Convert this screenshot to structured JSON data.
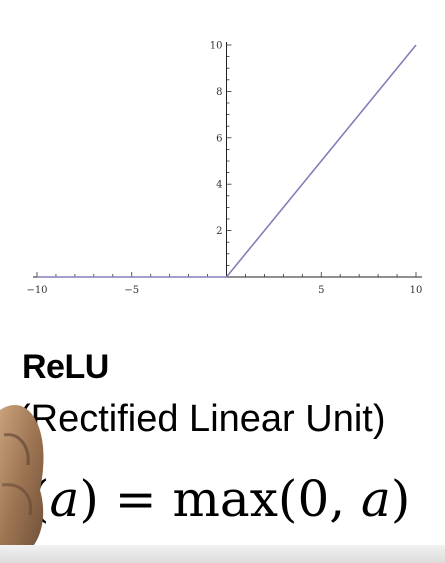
{
  "chart_data": {
    "type": "line",
    "x": [
      -10,
      0,
      10
    ],
    "series": [
      {
        "values": [
          0,
          0,
          10
        ]
      }
    ],
    "xlim": [
      -10,
      10
    ],
    "ylim": [
      0,
      10
    ],
    "x_ticks": [
      "-10",
      "-5",
      "5",
      "10"
    ],
    "y_ticks": [
      "2",
      "4",
      "6",
      "8",
      "10"
    ],
    "grid": false,
    "line_color": "#8080b8"
  },
  "caption": {
    "title": "ReLU",
    "subtitle": "(Rectified Linear Unit)",
    "formula_open": "(",
    "formula_arg": "a",
    "formula_rest": ") = max(0, ",
    "formula_arg2": "a",
    "formula_close": ")"
  }
}
